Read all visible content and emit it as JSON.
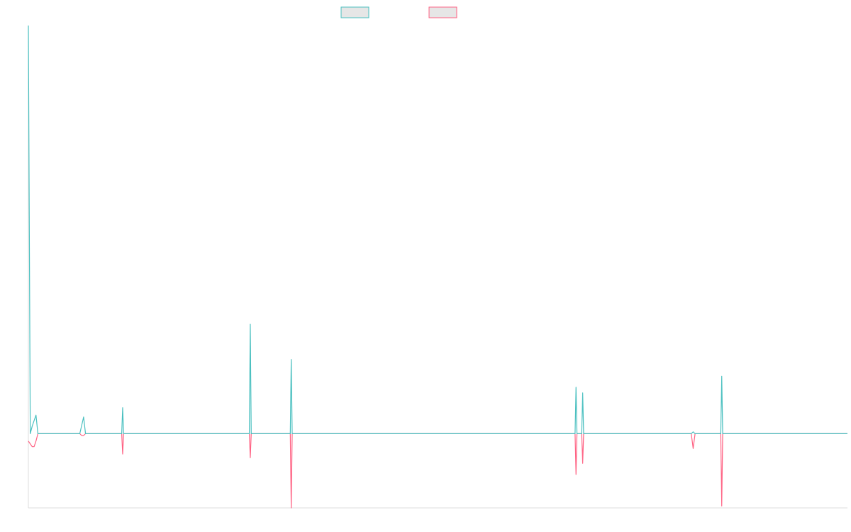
{
  "chart_data": {
    "type": "line",
    "title": "",
    "xlabel": "",
    "ylabel": "",
    "grid": false,
    "legend": {
      "placement": "top-center",
      "entries": [
        "",
        ""
      ]
    },
    "colors": {
      "series_a": "#4bc0c0",
      "series_b": "#ff6384",
      "legend_fill": "#e6e6e6",
      "axis": "#dcdcdc"
    },
    "ylim": [
      -40,
      220
    ],
    "xlim": [
      0,
      430
    ],
    "series": [
      {
        "values": [
          [
            0,
            220
          ],
          [
            1,
            0
          ],
          [
            2,
            4
          ],
          [
            4,
            10
          ],
          [
            5,
            0
          ],
          [
            27,
            0
          ],
          [
            29,
            9
          ],
          [
            30,
            0
          ],
          [
            49,
            0
          ],
          [
            49.5,
            14
          ],
          [
            50,
            0
          ],
          [
            116,
            0
          ],
          [
            116.5,
            59
          ],
          [
            117,
            0
          ],
          [
            137.5,
            0
          ],
          [
            138,
            40
          ],
          [
            138.5,
            0
          ],
          [
            287,
            0
          ],
          [
            287.5,
            25
          ],
          [
            288,
            0
          ],
          [
            290.5,
            0
          ],
          [
            291,
            22
          ],
          [
            291.5,
            0
          ],
          [
            348,
            0
          ],
          [
            349,
            1
          ],
          [
            350,
            0
          ],
          [
            363.5,
            0
          ],
          [
            364,
            31
          ],
          [
            364.5,
            0
          ],
          [
            430,
            0
          ]
        ]
      },
      {
        "values": [
          [
            0,
            -4
          ],
          [
            2,
            -7
          ],
          [
            3,
            -7
          ],
          [
            4,
            -4
          ],
          [
            5,
            0
          ],
          [
            27,
            0
          ],
          [
            28,
            -1
          ],
          [
            29,
            -1
          ],
          [
            30,
            0
          ],
          [
            49,
            0
          ],
          [
            49.5,
            -11
          ],
          [
            50,
            0
          ],
          [
            116,
            0
          ],
          [
            116.5,
            -13
          ],
          [
            117,
            0
          ],
          [
            137.5,
            0
          ],
          [
            138,
            -40
          ],
          [
            138.5,
            0
          ],
          [
            287,
            0
          ],
          [
            287.5,
            -22
          ],
          [
            288,
            0
          ],
          [
            290.5,
            0
          ],
          [
            291,
            -16
          ],
          [
            291.5,
            0
          ],
          [
            348,
            0
          ],
          [
            349,
            -8
          ],
          [
            350,
            0
          ],
          [
            363.5,
            0
          ],
          [
            364,
            -39
          ],
          [
            364.5,
            0
          ],
          [
            430,
            0
          ]
        ]
      }
    ]
  }
}
